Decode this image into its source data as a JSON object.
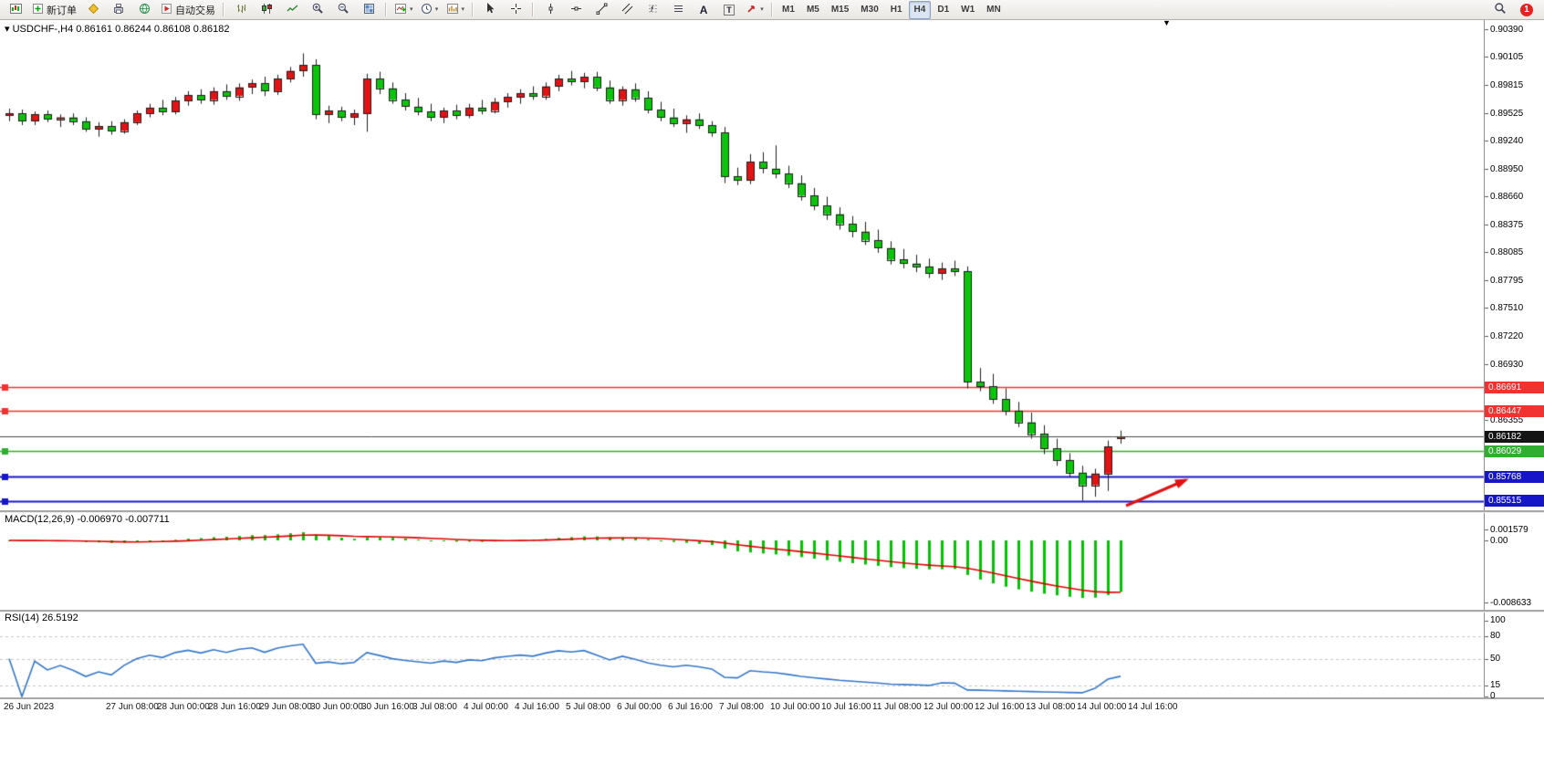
{
  "toolbar": {
    "new_order_label": "新订单",
    "auto_trading_label": "自动交易",
    "text_tool_label": "A",
    "label_tool_label": "T",
    "timeframes": [
      "M1",
      "M5",
      "M15",
      "M30",
      "H1",
      "H4",
      "D1",
      "W1",
      "MN"
    ],
    "active_timeframe": "H4",
    "notification_count": "1"
  },
  "chart": {
    "title": "USDCHF-,H4  0.86161 0.86244 0.86108 0.86182",
    "collapse_marker": "▾",
    "shift_marker": "▼"
  },
  "price_axis": {
    "ticks": [
      0.9039,
      0.90105,
      0.89815,
      0.89525,
      0.8924,
      0.8895,
      0.8866,
      0.88375,
      0.88085,
      0.87795,
      0.8751,
      0.8722,
      0.8693,
      0.86355
    ]
  },
  "macd_panel": {
    "title": "MACD(12,26,9) -0.006970 -0.007711",
    "hist_color": "#00c400",
    "signal_color": "#e00000",
    "axis": [
      {
        "v": 0.001579,
        "t": "0.001579"
      },
      {
        "v": 0,
        "t": "0.00"
      },
      {
        "v": -0.008633,
        "t": "-0.008633"
      }
    ]
  },
  "rsi_panel": {
    "title": "RSI(14) 26.5192",
    "line_color": "#3577c9",
    "levels": [
      80,
      50,
      15
    ],
    "axis": [
      {
        "v": 100,
        "t": "100"
      },
      {
        "v": 80,
        "t": "80"
      },
      {
        "v": 50,
        "t": "50"
      },
      {
        "v": 15,
        "t": "15"
      },
      {
        "v": 0,
        "t": "0"
      }
    ]
  },
  "time_axis": {
    "labels": [
      {
        "i": 0,
        "t": "26 Jun 2023"
      },
      {
        "i": 8,
        "t": "27 Jun 08:00"
      },
      {
        "i": 12,
        "t": "28 Jun 00:00"
      },
      {
        "i": 16,
        "t": "28 Jun 16:00"
      },
      {
        "i": 20,
        "t": "29 Jun 08:00"
      },
      {
        "i": 24,
        "t": "30 Jun 00:00"
      },
      {
        "i": 28,
        "t": "30 Jun 16:00"
      },
      {
        "i": 32,
        "t": "3 Jul 08:00"
      },
      {
        "i": 36,
        "t": "4 Jul 00:00"
      },
      {
        "i": 40,
        "t": "4 Jul 16:00"
      },
      {
        "i": 44,
        "t": "5 Jul 08:00"
      },
      {
        "i": 48,
        "t": "6 Jul 00:00"
      },
      {
        "i": 52,
        "t": "6 Jul 16:00"
      },
      {
        "i": 56,
        "t": "7 Jul 08:00"
      },
      {
        "i": 60,
        "t": "10 Jul 00:00"
      },
      {
        "i": 64,
        "t": "10 Jul 16:00"
      },
      {
        "i": 68,
        "t": "11 Jul 08:00"
      },
      {
        "i": 72,
        "t": "12 Jul 00:00"
      },
      {
        "i": 76,
        "t": "12 Jul 16:00"
      },
      {
        "i": 80,
        "t": "13 Jul 08:00"
      },
      {
        "i": 84,
        "t": "14 Jul 00:00"
      },
      {
        "i": 88,
        "t": "14 Jul 16:00"
      }
    ]
  },
  "chart_data": {
    "type": "candlestick",
    "symbol": "USDCHF",
    "timeframe": "H4",
    "ohlc_current": {
      "open": 0.86161,
      "high": 0.86244,
      "low": 0.86108,
      "close": 0.86182
    },
    "colors": {
      "up": "#e41212",
      "down": "#0cc40c",
      "outline": "#1f1f1f"
    },
    "indicators": [
      {
        "name": "MACD",
        "params": [
          12,
          26,
          9
        ],
        "values": {
          "macd": -0.00697,
          "signal": -0.007711
        }
      },
      {
        "name": "RSI",
        "params": [
          14
        ],
        "value": 26.5192
      }
    ],
    "horizontal_lines": [
      {
        "price": 0.86691,
        "label": "0.86691",
        "color": "#f23131",
        "lw": 1.5,
        "handle": true
      },
      {
        "price": 0.86447,
        "label": "0.86447",
        "color": "#f23131",
        "lw": 1.5,
        "handle": true
      },
      {
        "price": 0.86029,
        "label": "0.86029",
        "color": "#2fae2f",
        "lw": 1.5,
        "handle": true
      },
      {
        "price": 0.85768,
        "label": "0.85768",
        "color": "#1616c8",
        "lw": 2,
        "handle": true
      },
      {
        "price": 0.85515,
        "label": "0.85515",
        "color": "#1616c8",
        "lw": 2,
        "handle": true
      }
    ],
    "bid_line": {
      "price": 0.86182,
      "label": "0.86182",
      "color": "#474747",
      "tag_bg": "#141414"
    },
    "arrow_annotation": {
      "color": "#e01212",
      "from": [
        1234,
        532
      ],
      "to": [
        1299,
        504
      ]
    },
    "candles": [
      [
        0.895,
        0.8957,
        0.8944,
        0.8952
      ],
      [
        0.8952,
        0.8956,
        0.894,
        0.8944
      ],
      [
        0.8944,
        0.8954,
        0.894,
        0.8951
      ],
      [
        0.8951,
        0.8955,
        0.8943,
        0.8946
      ],
      [
        0.8946,
        0.8951,
        0.8938,
        0.8948
      ],
      [
        0.8948,
        0.8952,
        0.894,
        0.8944
      ],
      [
        0.8944,
        0.8948,
        0.8933,
        0.8936
      ],
      [
        0.8936,
        0.8943,
        0.8928,
        0.8939
      ],
      [
        0.8939,
        0.8944,
        0.893,
        0.8934
      ],
      [
        0.8934,
        0.8946,
        0.8931,
        0.8943
      ],
      [
        0.8943,
        0.8955,
        0.894,
        0.8952
      ],
      [
        0.8952,
        0.8962,
        0.8948,
        0.8958
      ],
      [
        0.8958,
        0.8966,
        0.895,
        0.8954
      ],
      [
        0.8954,
        0.8969,
        0.8951,
        0.8965
      ],
      [
        0.8965,
        0.8975,
        0.896,
        0.8971
      ],
      [
        0.8971,
        0.8977,
        0.8962,
        0.8966
      ],
      [
        0.8966,
        0.8979,
        0.8961,
        0.8975
      ],
      [
        0.8975,
        0.8982,
        0.8966,
        0.897
      ],
      [
        0.897,
        0.8983,
        0.8965,
        0.8979
      ],
      [
        0.8979,
        0.8987,
        0.8972,
        0.8983
      ],
      [
        0.8983,
        0.899,
        0.897,
        0.8975
      ],
      [
        0.8975,
        0.8992,
        0.8971,
        0.8988
      ],
      [
        0.8988,
        0.9,
        0.8984,
        0.8996
      ],
      [
        0.8996,
        0.9014,
        0.899,
        0.9002
      ],
      [
        0.9002,
        0.9008,
        0.8946,
        0.8951
      ],
      [
        0.8951,
        0.896,
        0.8942,
        0.8955
      ],
      [
        0.8955,
        0.8959,
        0.8944,
        0.8948
      ],
      [
        0.8948,
        0.8956,
        0.894,
        0.8952
      ],
      [
        0.8952,
        0.8993,
        0.8933,
        0.8988
      ],
      [
        0.8988,
        0.8995,
        0.8972,
        0.8978
      ],
      [
        0.8978,
        0.8984,
        0.8962,
        0.8966
      ],
      [
        0.8966,
        0.8973,
        0.8955,
        0.8959
      ],
      [
        0.8959,
        0.8968,
        0.895,
        0.8954
      ],
      [
        0.8954,
        0.8962,
        0.8944,
        0.8948
      ],
      [
        0.8948,
        0.8958,
        0.8942,
        0.8955
      ],
      [
        0.8955,
        0.8961,
        0.8946,
        0.895
      ],
      [
        0.895,
        0.8962,
        0.8947,
        0.8958
      ],
      [
        0.8958,
        0.8966,
        0.8951,
        0.8955
      ],
      [
        0.8955,
        0.8968,
        0.8952,
        0.8964
      ],
      [
        0.8964,
        0.8973,
        0.8958,
        0.8969
      ],
      [
        0.8969,
        0.8977,
        0.8962,
        0.8973
      ],
      [
        0.8973,
        0.898,
        0.8966,
        0.897
      ],
      [
        0.897,
        0.8984,
        0.8966,
        0.898
      ],
      [
        0.898,
        0.8992,
        0.8975,
        0.8988
      ],
      [
        0.8988,
        0.8996,
        0.8981,
        0.8985
      ],
      [
        0.8985,
        0.8994,
        0.8978,
        0.899
      ],
      [
        0.899,
        0.8995,
        0.8975,
        0.8979
      ],
      [
        0.8979,
        0.8986,
        0.8962,
        0.8966
      ],
      [
        0.8966,
        0.898,
        0.896,
        0.8977
      ],
      [
        0.8977,
        0.8983,
        0.8964,
        0.8968
      ],
      [
        0.8968,
        0.8975,
        0.8952,
        0.8956
      ],
      [
        0.8956,
        0.8964,
        0.8944,
        0.8948
      ],
      [
        0.8948,
        0.8957,
        0.8938,
        0.8942
      ],
      [
        0.8942,
        0.895,
        0.8932,
        0.8946
      ],
      [
        0.8946,
        0.8952,
        0.8936,
        0.894
      ],
      [
        0.894,
        0.8944,
        0.8928,
        0.8932
      ],
      [
        0.8932,
        0.8938,
        0.888,
        0.8887
      ],
      [
        0.8887,
        0.8896,
        0.8878,
        0.8883
      ],
      [
        0.8883,
        0.891,
        0.8879,
        0.8902
      ],
      [
        0.8902,
        0.8912,
        0.889,
        0.8895
      ],
      [
        0.8895,
        0.8919,
        0.8885,
        0.889
      ],
      [
        0.889,
        0.8898,
        0.8875,
        0.888
      ],
      [
        0.888,
        0.8888,
        0.8862,
        0.8867
      ],
      [
        0.8867,
        0.8875,
        0.8852,
        0.8857
      ],
      [
        0.8857,
        0.8866,
        0.8842,
        0.8848
      ],
      [
        0.8848,
        0.8855,
        0.8832,
        0.8838
      ],
      [
        0.8838,
        0.8846,
        0.8824,
        0.883
      ],
      [
        0.883,
        0.884,
        0.8816,
        0.8821
      ],
      [
        0.8821,
        0.8832,
        0.8808,
        0.8813
      ],
      [
        0.8813,
        0.882,
        0.8796,
        0.8801
      ],
      [
        0.8801,
        0.8812,
        0.8792,
        0.8797
      ],
      [
        0.8797,
        0.8806,
        0.8788,
        0.8794
      ],
      [
        0.8794,
        0.8802,
        0.8782,
        0.8787
      ],
      [
        0.8787,
        0.8798,
        0.878,
        0.8792
      ],
      [
        0.8792,
        0.88,
        0.8784,
        0.8789
      ],
      [
        0.8789,
        0.8794,
        0.8668,
        0.8675
      ],
      [
        0.8675,
        0.8689,
        0.8665,
        0.867
      ],
      [
        0.867,
        0.8683,
        0.8652,
        0.8657
      ],
      [
        0.8657,
        0.8668,
        0.864,
        0.8645
      ],
      [
        0.8645,
        0.8654,
        0.8628,
        0.8633
      ],
      [
        0.8633,
        0.8643,
        0.8616,
        0.8621
      ],
      [
        0.8621,
        0.863,
        0.86,
        0.8606
      ],
      [
        0.8606,
        0.8616,
        0.8588,
        0.8594
      ],
      [
        0.8594,
        0.8601,
        0.8576,
        0.8581
      ],
      [
        0.8581,
        0.8588,
        0.8552,
        0.8568
      ],
      [
        0.8568,
        0.8585,
        0.8556,
        0.858
      ],
      [
        0.858,
        0.8614,
        0.8562,
        0.8608
      ],
      [
        0.86161,
        0.86244,
        0.86108,
        0.86182
      ]
    ]
  }
}
